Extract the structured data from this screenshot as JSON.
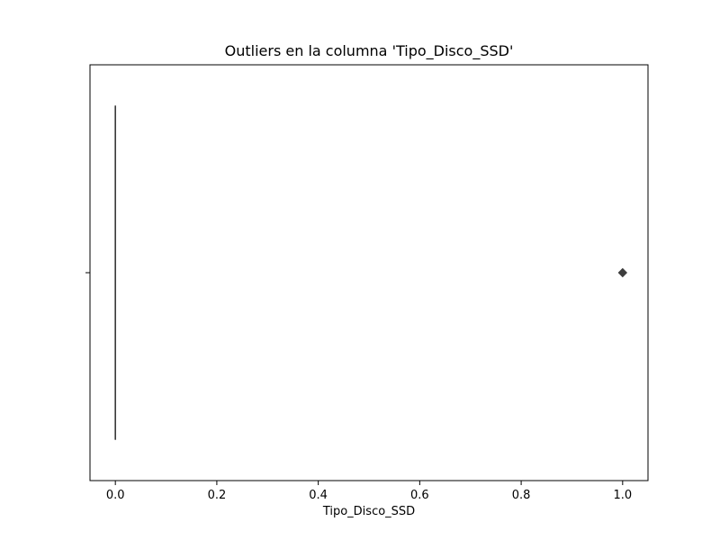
{
  "chart_data": {
    "type": "box",
    "title": "Outliers en la columna 'Tipo_Disco_SSD'",
    "xlabel": "Tipo_Disco_SSD",
    "ylabel": "",
    "xlim": [
      -0.05,
      1.05
    ],
    "xticks": [
      0.0,
      0.2,
      0.4,
      0.6,
      0.8,
      1.0
    ],
    "xtick_labels": [
      "0.0",
      "0.2",
      "0.4",
      "0.6",
      "0.8",
      "1.0"
    ],
    "grid": false,
    "box": {
      "min": 0.0,
      "q1": 0.0,
      "median": 0.0,
      "q3": 0.0,
      "max": 0.0,
      "outliers": [
        1.0
      ],
      "color": "#3a3a3a"
    },
    "outlier_color": "#3d3d3d"
  }
}
